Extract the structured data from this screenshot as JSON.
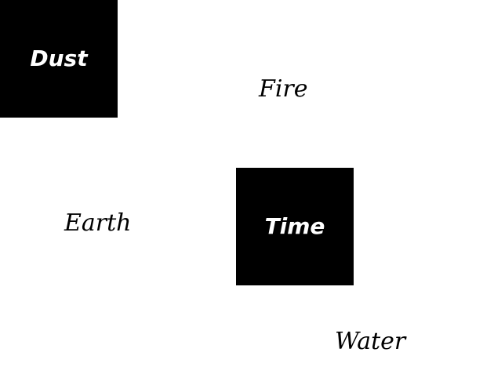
{
  "colors": {
    "background": "#ffffff",
    "box_fill": "#000000",
    "box_text": "#ffffff",
    "plain_text": "#000000"
  },
  "boxes": {
    "dust": "Dust",
    "time": "Time"
  },
  "words": {
    "fire": "Fire",
    "earth": "Earth",
    "water": "Water"
  }
}
